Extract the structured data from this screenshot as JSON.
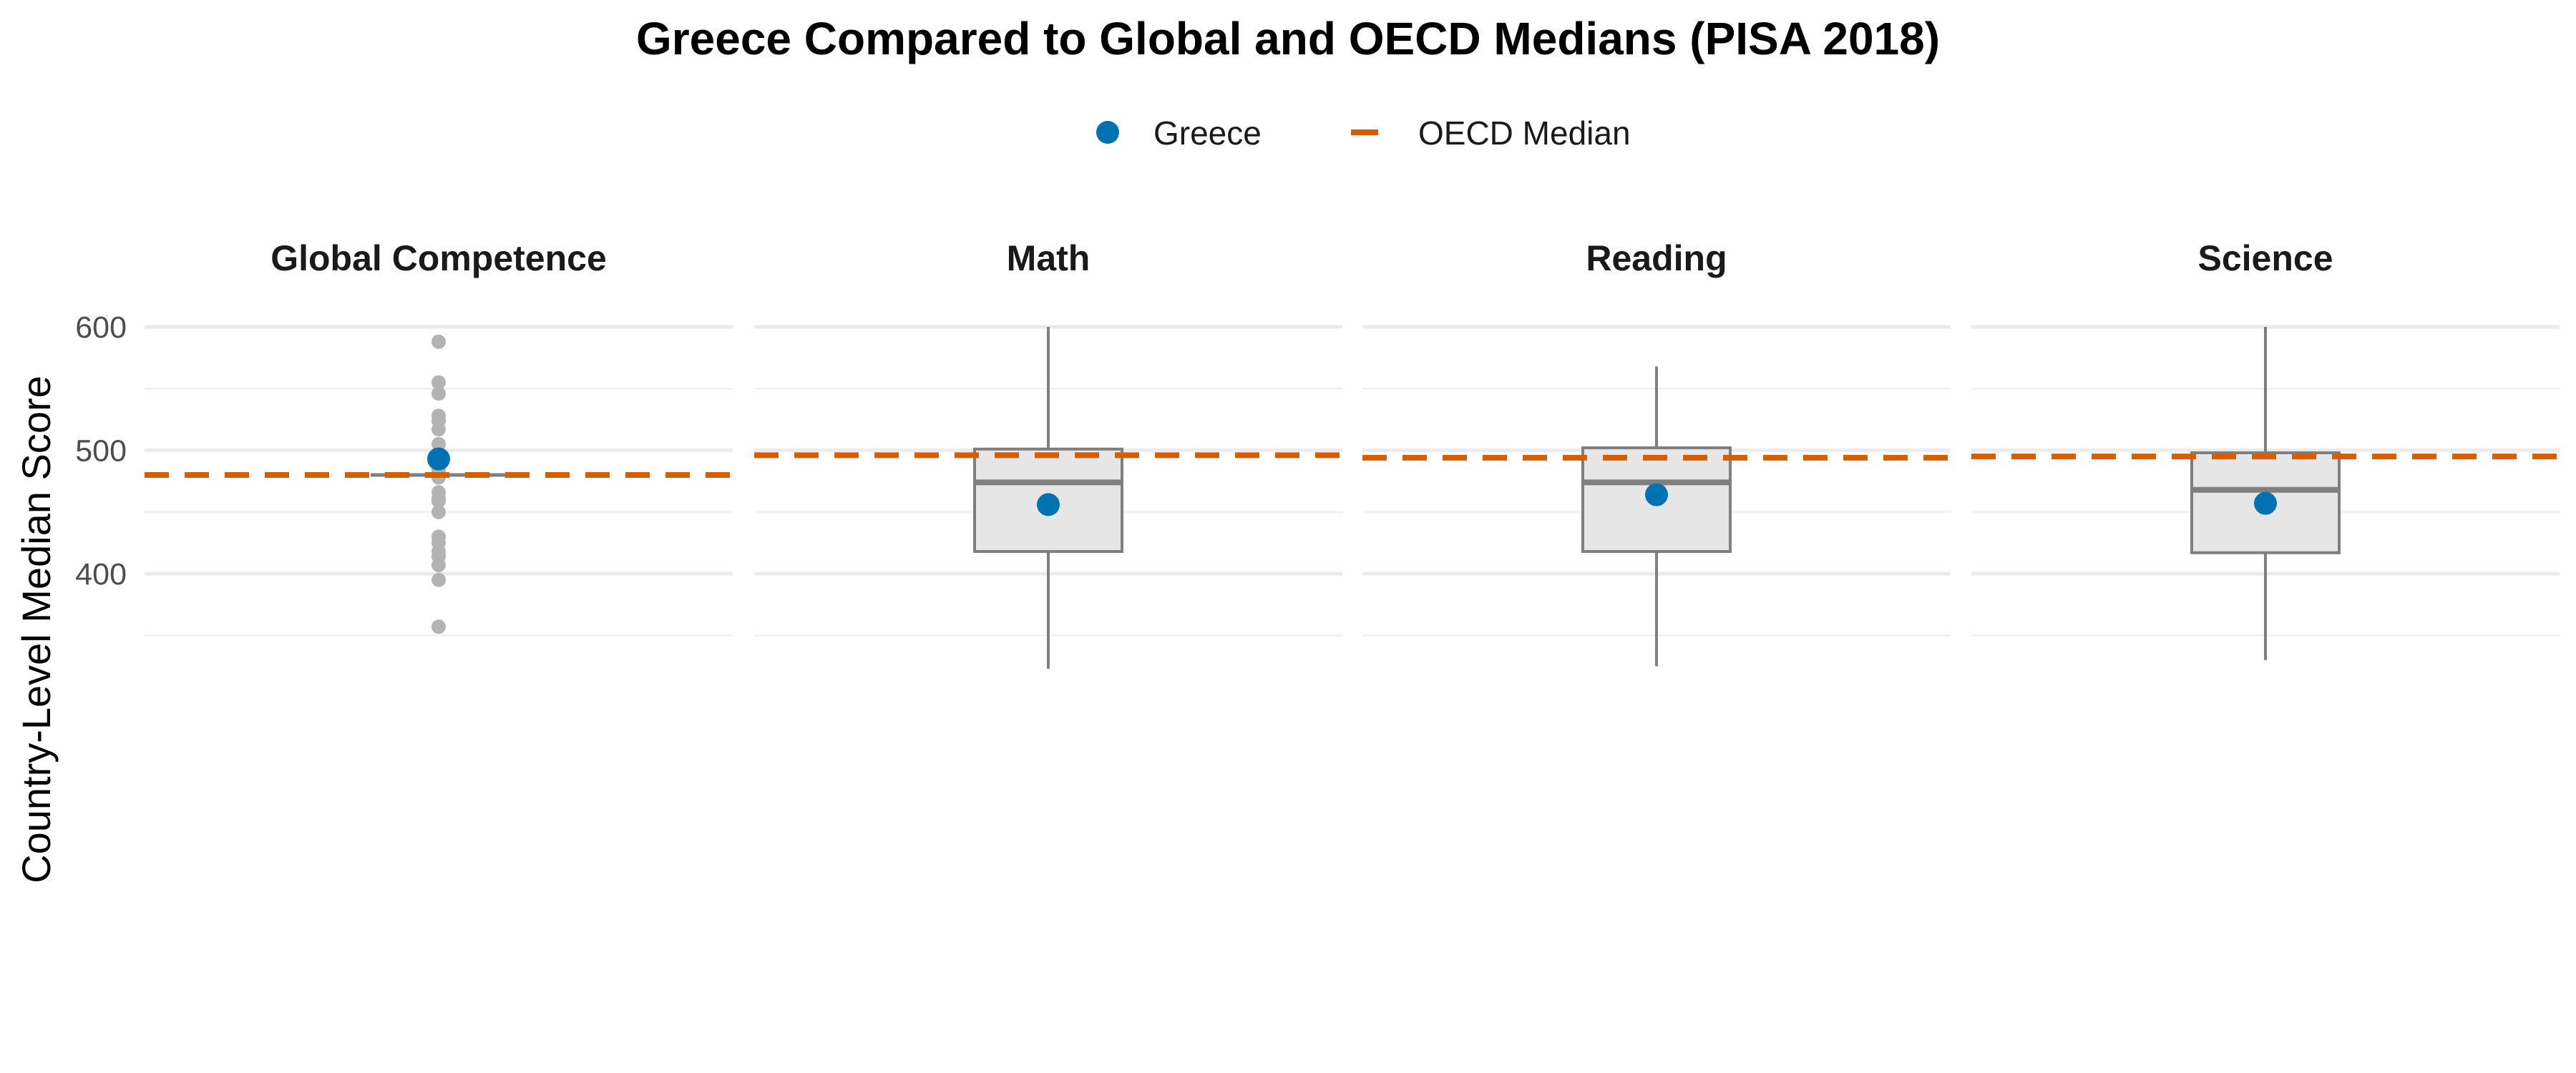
{
  "chart_data": {
    "type": "boxplot",
    "title": "Greece Compared to Global and OECD Medians (PISA 2018)",
    "xlabel": "",
    "ylabel": "Country-Level Median Score",
    "y_ticks": [
      400,
      500,
      600
    ],
    "ylim": [
      325,
      610
    ],
    "grid": true,
    "legend": {
      "position": "top",
      "entries": [
        {
          "label": "Greece",
          "symbol": "point",
          "color": "#0072B2"
        },
        {
          "label": "OECD Median",
          "symbol": "dashed-line",
          "color": "#D55E00"
        }
      ]
    },
    "colors": {
      "greece": "#0072B2",
      "oecd": "#D55E00",
      "box_fill": "#E6E6E6",
      "box_line": "#7F7F7F",
      "outlier": "#B3B3B3",
      "grid": "#EBEBEB"
    },
    "panels": [
      {
        "label": "Global Competence",
        "box": {
          "lower_whisker": 480,
          "q1": 480,
          "median": 480,
          "q3": 480,
          "upper_whisker": 480
        },
        "outliers": [
          588,
          555,
          546,
          528,
          524,
          517,
          505,
          495,
          490,
          488,
          485,
          483,
          478,
          466,
          461,
          459,
          450,
          430,
          425,
          418,
          414,
          407,
          395,
          357
        ],
        "greece": 493,
        "oecd_median": 480
      },
      {
        "label": "Math",
        "box": {
          "lower_whisker": 323,
          "q1": 418,
          "median": 474,
          "q3": 501,
          "upper_whisker": 600
        },
        "outliers": [],
        "greece": 456,
        "oecd_median": 496
      },
      {
        "label": "Reading",
        "box": {
          "lower_whisker": 325,
          "q1": 418,
          "median": 474,
          "q3": 502,
          "upper_whisker": 568
        },
        "outliers": [],
        "greece": 464,
        "oecd_median": 494
      },
      {
        "label": "Science",
        "box": {
          "lower_whisker": 330,
          "q1": 417,
          "median": 468,
          "q3": 498,
          "upper_whisker": 600
        },
        "outliers": [],
        "greece": 457,
        "oecd_median": 495
      }
    ]
  }
}
